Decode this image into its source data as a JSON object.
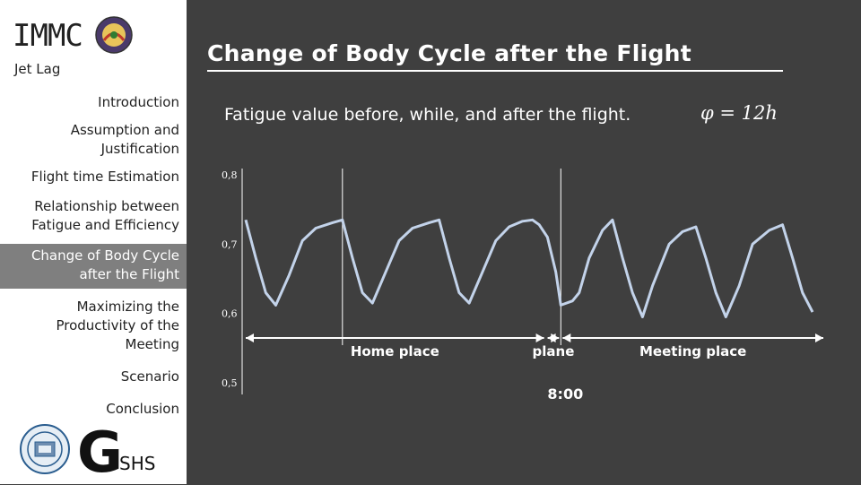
{
  "sidebar": {
    "brand": "IMMC",
    "subtitle": "Jet Lag",
    "nav": [
      "Introduction",
      "Assumption and Justification",
      "Flight time Estimation",
      "Relationship between Fatigue and Efficiency",
      "Change of Body Cycle after the Flight",
      "Maximizing the Productivity of the Meeting",
      "Scenario",
      "Conclusion"
    ],
    "active_index": 4,
    "school_logo_letter": "G",
    "school_logo_suffix": "SHS"
  },
  "slide": {
    "title": "Change of Body Cycle after the Flight",
    "description": "Fatigue value before, while, and after the flight.",
    "formula": "φ = 12h"
  },
  "chart_data": {
    "type": "line",
    "title": "",
    "xlabel": "",
    "ylabel": "",
    "y_ticks": [
      "0,8",
      "0,7",
      "0,6",
      "0,5"
    ],
    "ylim": [
      0.5,
      0.8
    ],
    "series": [
      {
        "values": [
          [
            0.0,
            0.735
          ],
          [
            0.3,
            0.68
          ],
          [
            0.6,
            0.63
          ],
          [
            0.9,
            0.612
          ],
          [
            1.3,
            0.655
          ],
          [
            1.7,
            0.705
          ],
          [
            2.1,
            0.723
          ],
          [
            2.6,
            0.731
          ],
          [
            2.9,
            0.735
          ],
          [
            3.2,
            0.68
          ],
          [
            3.5,
            0.63
          ],
          [
            3.8,
            0.615
          ],
          [
            4.2,
            0.66
          ],
          [
            4.6,
            0.705
          ],
          [
            5.0,
            0.723
          ],
          [
            5.5,
            0.731
          ],
          [
            5.8,
            0.735
          ],
          [
            6.1,
            0.68
          ],
          [
            6.4,
            0.63
          ],
          [
            6.7,
            0.615
          ],
          [
            7.1,
            0.66
          ],
          [
            7.5,
            0.705
          ],
          [
            7.9,
            0.725
          ],
          [
            8.3,
            0.733
          ],
          [
            8.6,
            0.735
          ],
          [
            8.8,
            0.728
          ],
          [
            9.05,
            0.71
          ],
          [
            9.3,
            0.66
          ],
          [
            9.45,
            0.612
          ],
          [
            9.8,
            0.618
          ],
          [
            10.0,
            0.63
          ],
          [
            10.3,
            0.68
          ],
          [
            10.7,
            0.72
          ],
          [
            11.0,
            0.735
          ],
          [
            11.3,
            0.68
          ],
          [
            11.6,
            0.63
          ],
          [
            11.9,
            0.595
          ],
          [
            12.2,
            0.64
          ],
          [
            12.7,
            0.7
          ],
          [
            13.1,
            0.718
          ],
          [
            13.5,
            0.725
          ],
          [
            13.8,
            0.68
          ],
          [
            14.1,
            0.63
          ],
          [
            14.4,
            0.595
          ],
          [
            14.8,
            0.64
          ],
          [
            15.2,
            0.7
          ],
          [
            15.7,
            0.72
          ],
          [
            16.1,
            0.728
          ],
          [
            16.4,
            0.68
          ],
          [
            16.7,
            0.63
          ],
          [
            17.0,
            0.602
          ]
        ]
      }
    ],
    "vertical_markers": [
      2.9,
      9.45
    ],
    "regions": [
      {
        "label": "Home place",
        "from": 0.0,
        "to": 9.0
      },
      {
        "label": "plane",
        "from": 9.0,
        "to": 9.45
      },
      {
        "label": "Meeting place",
        "from": 9.45,
        "to": 17.0
      }
    ],
    "time_label": "8:00",
    "grid": false
  },
  "colors": {
    "background": "#3f3f3f",
    "line": "#c3d3ea",
    "text": "#ffffff",
    "accent": "#f2b800"
  }
}
